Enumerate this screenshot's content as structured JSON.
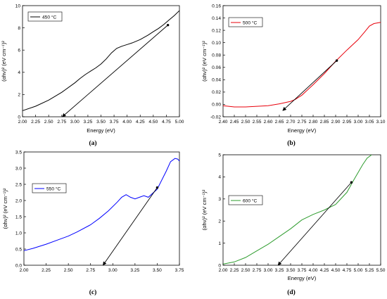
{
  "chart_data": [
    {
      "panel": "(a)",
      "type": "line",
      "xlabel": "Energy (eV)",
      "ylabel": "(αhν)² (eV cm⁻¹)²",
      "xlim": [
        2.0,
        5.0
      ],
      "ylim": [
        0,
        10
      ],
      "xticks": [
        "2.00",
        "2.25",
        "2.50",
        "2.75",
        "3.00",
        "3.25",
        "3.50",
        "3.75",
        "4.00",
        "4.25",
        "4.50",
        "4.75",
        "5.00"
      ],
      "yticks": [
        "0",
        "2",
        "4",
        "6",
        "8",
        "10"
      ],
      "legend": "450 °C",
      "legend_position": "top-left",
      "grid": false,
      "series_color": "#000000",
      "series": [
        {
          "x": [
            2.0,
            2.25,
            2.5,
            2.75,
            3.0,
            3.1,
            3.2,
            3.3,
            3.4,
            3.5,
            3.6,
            3.7,
            3.8,
            3.9,
            4.0,
            4.1,
            4.25,
            4.4,
            4.5,
            4.6,
            4.7,
            4.8,
            4.9,
            5.0
          ],
          "y": [
            0.55,
            0.95,
            1.5,
            2.2,
            3.05,
            3.45,
            3.8,
            4.1,
            4.4,
            4.75,
            5.2,
            5.75,
            6.15,
            6.35,
            6.5,
            6.65,
            6.95,
            7.35,
            7.65,
            7.95,
            8.3,
            8.7,
            9.1,
            9.55
          ]
        }
      ],
      "tangent": {
        "x": [
          4.78,
          2.76
        ],
        "y": [
          8.25,
          0
        ]
      }
    },
    {
      "panel": "(b)",
      "type": "line",
      "xlabel": "Energy (eV)",
      "ylabel": "(αhν)² (eV cm⁻¹)²",
      "xlim": [
        2.4,
        3.1
      ],
      "ylim": [
        -0.02,
        0.16
      ],
      "xticks": [
        "2.40",
        "2.45",
        "2.50",
        "2.55",
        "2.60",
        "2.65",
        "2.70",
        "2.75",
        "2.80",
        "2.85",
        "2.90",
        "2.95",
        "3.00",
        "3.05",
        "3.10"
      ],
      "yticks": [
        "-0.02",
        "0.00",
        "0.02",
        "0.04",
        "0.06",
        "0.08",
        "0.10",
        "0.12",
        "0.14",
        "0.16"
      ],
      "legend": "500 °C",
      "legend_position": "top-left",
      "grid": false,
      "series_color": "#e8000b",
      "series": [
        {
          "x": [
            2.4,
            2.45,
            2.5,
            2.55,
            2.6,
            2.65,
            2.7,
            2.72,
            2.75,
            2.8,
            2.85,
            2.9,
            2.95,
            3.0,
            3.03,
            3.05,
            3.07,
            3.1
          ],
          "y": [
            -0.002,
            -0.004,
            -0.004,
            -0.003,
            -0.002,
            0.001,
            0.005,
            0.008,
            0.015,
            0.032,
            0.05,
            0.07,
            0.088,
            0.105,
            0.118,
            0.127,
            0.131,
            0.133
          ]
        }
      ],
      "tangent": {
        "x": [
          2.905,
          2.665
        ],
        "y": [
          0.071,
          -0.01
        ]
      }
    },
    {
      "panel": "(c)",
      "type": "line",
      "xlabel": "",
      "ylabel": "(αhν)² (eV cm⁻¹)²",
      "xlim": [
        2.0,
        3.75
      ],
      "ylim": [
        0.0,
        3.5
      ],
      "xticks": [
        "2.00",
        "2.25",
        "2.50",
        "2.75",
        "3.00",
        "3.25",
        "3.50",
        "3.75"
      ],
      "yticks": [
        "0.0",
        "0.5",
        "1.0",
        "1.5",
        "2.0",
        "2.5",
        "3.0",
        "3.5"
      ],
      "legend": "550 °C",
      "legend_position": "middle-left",
      "grid": false,
      "series_color": "#0000ff",
      "series": [
        {
          "x": [
            2.0,
            2.1,
            2.25,
            2.4,
            2.5,
            2.6,
            2.75,
            2.85,
            2.95,
            3.05,
            3.1,
            3.15,
            3.2,
            3.25,
            3.3,
            3.35,
            3.4,
            3.5,
            3.6,
            3.65,
            3.7,
            3.73,
            3.75
          ],
          "y": [
            0.45,
            0.52,
            0.65,
            0.8,
            0.9,
            1.03,
            1.25,
            1.45,
            1.68,
            1.95,
            2.1,
            2.18,
            2.1,
            2.05,
            2.1,
            2.15,
            2.1,
            2.35,
            2.9,
            3.2,
            3.3,
            3.28,
            3.22
          ]
        }
      ],
      "tangent": {
        "x": [
          3.5,
          2.89
        ],
        "y": [
          2.4,
          0
        ]
      }
    },
    {
      "panel": "(d)",
      "type": "line",
      "xlabel": "Energy (eV)",
      "ylabel": "(αhν)² (eV cm⁻¹)²",
      "xlim": [
        2.0,
        5.5
      ],
      "ylim": [
        0,
        5
      ],
      "xticks": [
        "2.00",
        "2.25",
        "2.50",
        "2.75",
        "3.00",
        "3.25",
        "3.50",
        "3.75",
        "4.00",
        "4.25",
        "4.50",
        "4.75",
        "5.00",
        "5.25",
        "5.50"
      ],
      "yticks": [
        "0",
        "1",
        "2",
        "3",
        "4",
        "5"
      ],
      "legend": "600 °C",
      "legend_position": "middle-left",
      "grid": false,
      "series_color": "#2e9c2e",
      "series": [
        {
          "x": [
            2.0,
            2.25,
            2.5,
            2.75,
            3.0,
            3.25,
            3.5,
            3.75,
            4.0,
            4.25,
            4.5,
            4.75,
            4.9,
            5.0,
            5.1,
            5.2,
            5.3
          ],
          "y": [
            0.05,
            0.15,
            0.35,
            0.65,
            0.95,
            1.3,
            1.65,
            2.05,
            2.3,
            2.5,
            2.75,
            3.3,
            3.85,
            4.2,
            4.55,
            4.85,
            5.0
          ]
        }
      ],
      "tangent": {
        "x": [
          4.85,
          3.22
        ],
        "y": [
          3.75,
          0
        ]
      }
    }
  ],
  "panel_labels": [
    "(a)",
    "(b)",
    "(c)",
    "(d)"
  ]
}
